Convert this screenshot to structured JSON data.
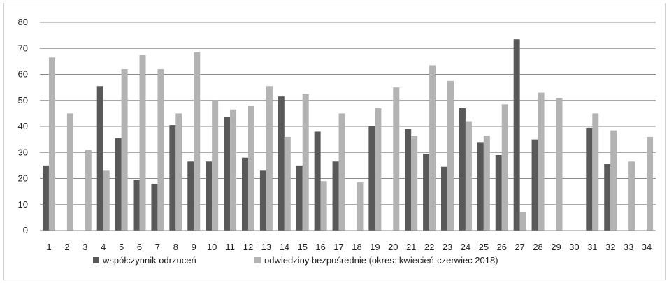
{
  "chart_data": {
    "type": "bar",
    "categories": [
      "1",
      "2",
      "3",
      "4",
      "5",
      "6",
      "7",
      "8",
      "9",
      "10",
      "11",
      "12",
      "13",
      "14",
      "15",
      "16",
      "17",
      "18",
      "19",
      "20",
      "21",
      "22",
      "23",
      "24",
      "25",
      "26",
      "27",
      "28",
      "29",
      "30",
      "31",
      "32",
      "33",
      "34"
    ],
    "series": [
      {
        "name": "współczynnik odrzuceń",
        "color": "#595959",
        "values": [
          25,
          null,
          null,
          55.5,
          35.5,
          19.5,
          18,
          40.5,
          26.5,
          26.5,
          43.5,
          28,
          23,
          51.5,
          25,
          38,
          26.5,
          null,
          40,
          null,
          39,
          29.5,
          24.5,
          47,
          34,
          29,
          73.5,
          35,
          null,
          null,
          39.5,
          25.5,
          null,
          null
        ]
      },
      {
        "name": "odwiedziny bezpośrednie (okres: kwiecień-czerwiec 2018)",
        "color": "#b3b3b3",
        "values": [
          66.5,
          45,
          31,
          23,
          62,
          67.5,
          62,
          45,
          68.5,
          50,
          46.5,
          48,
          55.5,
          36,
          52.5,
          19,
          45,
          18.5,
          47,
          55,
          36.5,
          63.5,
          57.5,
          42,
          36.5,
          48.5,
          7,
          53,
          51,
          null,
          45,
          38.5,
          26.5,
          36
        ]
      }
    ],
    "ylim": [
      0,
      80
    ],
    "yticks": [
      "0",
      "10",
      "20",
      "30",
      "40",
      "50",
      "60",
      "70",
      "80"
    ],
    "grid": true,
    "legend_position": "bottom",
    "title": "",
    "xlabel": "",
    "ylabel": ""
  }
}
